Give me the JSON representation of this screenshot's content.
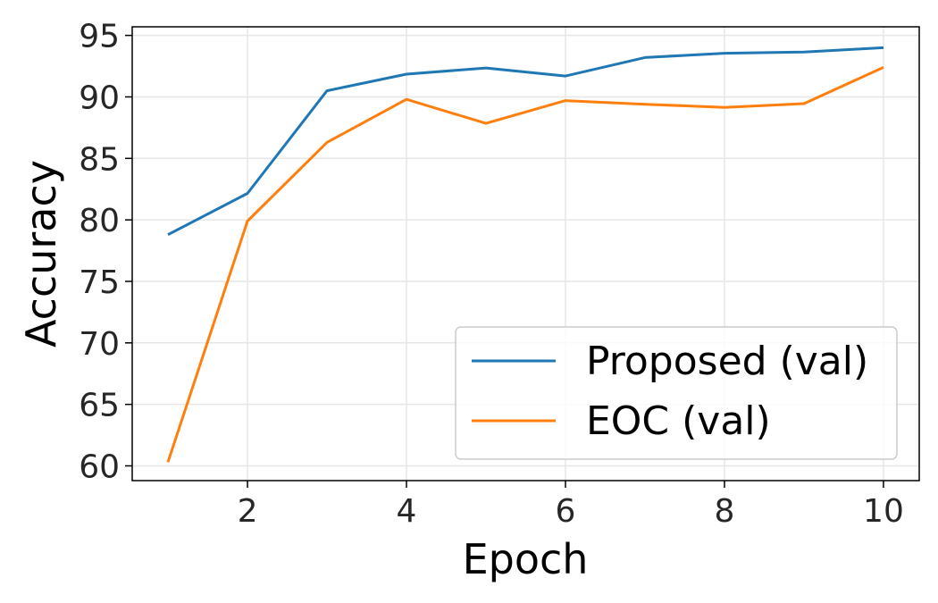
{
  "chart_data": {
    "type": "line",
    "xlabel": "Epoch",
    "ylabel": "Accuracy",
    "xlim": [
      0.55,
      10.45
    ],
    "ylim": [
      58.8,
      95.7
    ],
    "xticks": [
      2,
      4,
      6,
      8,
      10
    ],
    "yticks": [
      60,
      65,
      70,
      75,
      80,
      85,
      90,
      95
    ],
    "grid": true,
    "legend_position": "lower-right",
    "x": [
      1,
      2,
      3,
      4,
      5,
      6,
      7,
      8,
      9,
      10
    ],
    "series": [
      {
        "name": "Proposed (val)",
        "color": "#1f77b4",
        "values": [
          78.8,
          82.15,
          90.5,
          91.85,
          92.35,
          91.7,
          93.2,
          93.55,
          93.65,
          94.0
        ]
      },
      {
        "name": "EOC (val)",
        "color": "#ff7f0e",
        "values": [
          60.3,
          79.9,
          86.3,
          89.8,
          87.85,
          89.7,
          89.4,
          89.15,
          89.45,
          92.4
        ]
      }
    ]
  }
}
